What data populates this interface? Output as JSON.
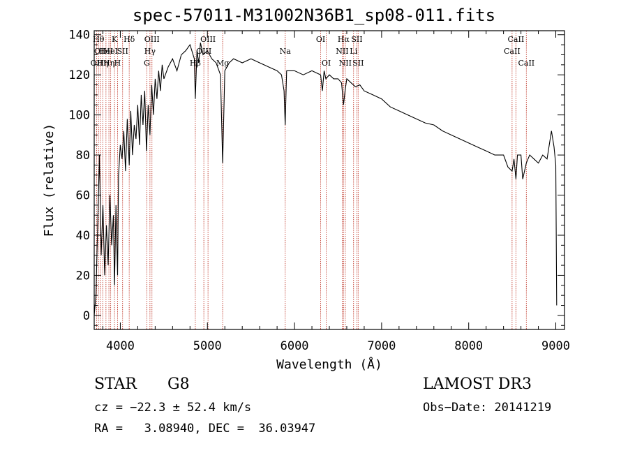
{
  "chart_data": {
    "type": "line",
    "title": "spec-57011-M31002N36B1_sp08-011.fits",
    "xlabel": "Wavelength (Å)",
    "ylabel": "Flux (relative)",
    "xlim": [
      3700,
      9100
    ],
    "ylim": [
      -7,
      142
    ],
    "xticks": [
      4000,
      5000,
      6000,
      7000,
      8000,
      9000
    ],
    "yticks": [
      0,
      20,
      40,
      60,
      80,
      100,
      120,
      140
    ],
    "series": [
      {
        "name": "flux",
        "x": [
          3700,
          3720,
          3740,
          3760,
          3780,
          3800,
          3820,
          3840,
          3860,
          3880,
          3900,
          3920,
          3933,
          3950,
          3968,
          3980,
          4000,
          4020,
          4040,
          4060,
          4080,
          4102,
          4120,
          4140,
          4160,
          4180,
          4200,
          4220,
          4240,
          4260,
          4280,
          4300,
          4320,
          4340,
          4360,
          4380,
          4400,
          4420,
          4440,
          4460,
          4480,
          4500,
          4550,
          4600,
          4650,
          4700,
          4750,
          4800,
          4850,
          4861,
          4880,
          4900,
          4920,
          4950,
          5000,
          5050,
          5100,
          5150,
          5175,
          5200,
          5250,
          5300,
          5400,
          5500,
          5600,
          5700,
          5800,
          5850,
          5880,
          5893,
          5910,
          5950,
          6000,
          6100,
          6200,
          6300,
          6320,
          6340,
          6360,
          6400,
          6450,
          6500,
          6540,
          6563,
          6580,
          6600,
          6650,
          6700,
          6750,
          6800,
          6900,
          7000,
          7100,
          7200,
          7300,
          7400,
          7500,
          7600,
          7700,
          7800,
          7900,
          8000,
          8100,
          8200,
          8300,
          8400,
          8450,
          8498,
          8520,
          8542,
          8560,
          8600,
          8620,
          8662,
          8700,
          8750,
          8800,
          8850,
          8900,
          8950,
          8980,
          9000,
          9010
        ],
        "values": [
          0,
          10,
          45,
          80,
          30,
          55,
          20,
          45,
          25,
          60,
          35,
          50,
          15,
          55,
          20,
          70,
          85,
          78,
          92,
          72,
          98,
          75,
          102,
          80,
          95,
          88,
          105,
          85,
          110,
          95,
          112,
          82,
          105,
          90,
          115,
          100,
          118,
          108,
          122,
          112,
          125,
          118,
          124,
          128,
          122,
          130,
          132,
          135,
          128,
          108,
          132,
          126,
          136,
          130,
          132,
          128,
          126,
          120,
          76,
          122,
          126,
          128,
          126,
          128,
          126,
          124,
          122,
          120,
          112,
          95,
          122,
          122,
          122,
          120,
          122,
          120,
          112,
          122,
          118,
          120,
          118,
          118,
          116,
          105,
          112,
          118,
          116,
          114,
          115,
          112,
          110,
          108,
          104,
          102,
          100,
          98,
          96,
          95,
          92,
          90,
          88,
          86,
          84,
          82,
          80,
          80,
          74,
          72,
          78,
          68,
          80,
          80,
          68,
          76,
          80,
          78,
          76,
          80,
          78,
          92,
          84,
          75,
          5
        ]
      }
    ],
    "lines": [
      {
        "wl": 3728,
        "row": 2,
        "label": "OII"
      },
      {
        "wl": 3750,
        "row": 0,
        "label": "Hθ"
      },
      {
        "wl": 3771,
        "row": 1,
        "label": "OII"
      },
      {
        "wl": 3798,
        "row": 2,
        "label": "Hη"
      },
      {
        "wl": 3835,
        "row": 1,
        "label": "HeI"
      },
      {
        "wl": 3869,
        "row": 2,
        "label": "Hη"
      },
      {
        "wl": 3889,
        "row": 1,
        "label": "HeI"
      },
      {
        "wl": 3933,
        "row": 0,
        "label": "K"
      },
      {
        "wl": 3968,
        "row": 2,
        "label": "H"
      },
      {
        "wl": 4026,
        "row": 1,
        "label": "SII"
      },
      {
        "wl": 4102,
        "row": 0,
        "label": "Hδ"
      },
      {
        "wl": 4304,
        "row": 2,
        "label": "G"
      },
      {
        "wl": 4340,
        "row": 1,
        "label": "Hγ"
      },
      {
        "wl": 4363,
        "row": 0,
        "label": "OIII"
      },
      {
        "wl": 4861,
        "row": 2,
        "label": "Hβ"
      },
      {
        "wl": 4959,
        "row": 1,
        "label": "OIII"
      },
      {
        "wl": 5007,
        "row": 0,
        "label": "OIII"
      },
      {
        "wl": 5175,
        "row": 2,
        "label": "Mg"
      },
      {
        "wl": 5893,
        "row": 1,
        "label": "Na"
      },
      {
        "wl": 6300,
        "row": 0,
        "label": "OI"
      },
      {
        "wl": 6364,
        "row": 2,
        "label": "OI"
      },
      {
        "wl": 6548,
        "row": 1,
        "label": "NII"
      },
      {
        "wl": 6563,
        "row": 0,
        "label": "Hα"
      },
      {
        "wl": 6583,
        "row": 2,
        "label": "NII"
      },
      {
        "wl": 6678,
        "row": 1,
        "label": "Li"
      },
      {
        "wl": 6716,
        "row": 0,
        "label": "SII"
      },
      {
        "wl": 6731,
        "row": 2,
        "label": "SII"
      },
      {
        "wl": 8498,
        "row": 1,
        "label": "CaII"
      },
      {
        "wl": 8542,
        "row": 0,
        "label": "CaII"
      },
      {
        "wl": 8662,
        "row": 2,
        "label": "CaII"
      }
    ]
  },
  "info": {
    "object_class": "STAR",
    "subclass": "G8",
    "survey": "LAMOST DR3",
    "cz": "cz = −22.3 ± 52.4 km/s",
    "obs_date": "Obs−Date: 20141219",
    "coords": "RA =   3.08940, DEC =  36.03947"
  },
  "colors": {
    "line_marker": "#c0392b",
    "spectrum": "#000000"
  }
}
